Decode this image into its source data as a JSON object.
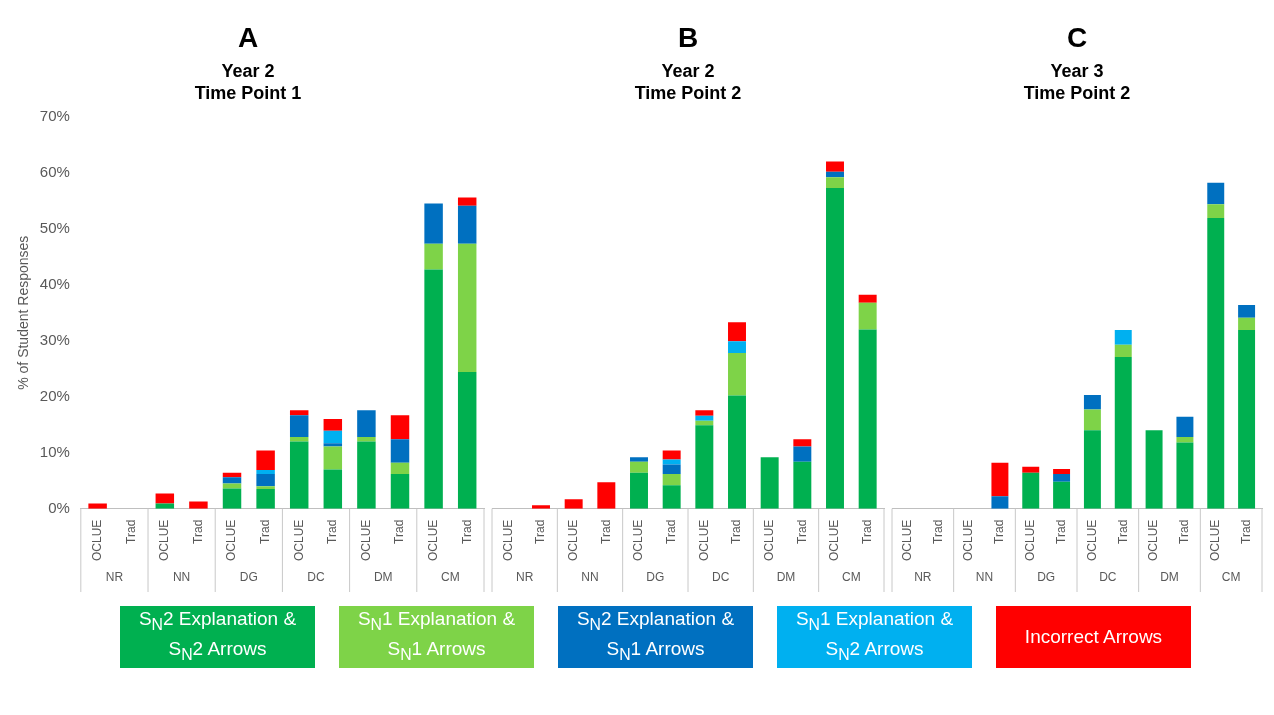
{
  "chart_data": [
    {
      "type": "bar",
      "title": "A",
      "subtitle": "Year 2\nTime Point 1",
      "ylabel": "% of Student Responses",
      "stacked": true,
      "legend": "bottom",
      "categories": [
        "OCLUE",
        "Trad",
        "OCLUE",
        "Trad",
        "OCLUE",
        "Trad",
        "OCLUE",
        "Trad",
        "OCLUE",
        "Trad",
        "OCLUE",
        "Trad"
      ],
      "annotations": [
        "NR",
        "NN",
        "DG",
        "DC",
        "DM",
        "CM"
      ],
      "ylim": [
        0,
        70
      ],
      "yticks": [
        {
          "value": 0,
          "label": "0%"
        },
        {
          "value": 10,
          "label": "10%"
        },
        {
          "value": 20,
          "label": "20%"
        },
        {
          "value": 30,
          "label": "30%"
        },
        {
          "value": 40,
          "label": "40%"
        },
        {
          "value": 50,
          "label": "50%"
        },
        {
          "value": 60,
          "label": "60%"
        },
        {
          "value": 70,
          "label": "70%"
        }
      ],
      "series": [
        {
          "name": "S$_{N}$2 Explanation & S$_{N}$2 Arrows",
          "color": "#00b050",
          "values": [
            null,
            null,
            0.9,
            null,
            3.6,
            3.5,
            12.0,
            7.0,
            12.0,
            6.2,
            42.7,
            24.4
          ]
        },
        {
          "name": "S$_{N}$1 Explanation & S$_{N}$1 Arrows",
          "color": "#7ed348",
          "values": [
            null,
            null,
            null,
            null,
            0.9,
            0.5,
            0.8,
            4.1,
            0.8,
            2.0,
            4.6,
            22.9
          ]
        },
        {
          "name": "S$_{N}$2 Explanation & S$_{N}$1 Arrows",
          "color": "#0070c0",
          "values": [
            null,
            null,
            null,
            null,
            1.1,
            2.2,
            3.9,
            0.6,
            4.8,
            4.2,
            7.2,
            6.8
          ]
        },
        {
          "name": "S$_{N}$1 Explanation & S$_{N}$2 Arrows",
          "color": "#00b0f0",
          "values": [
            null,
            null,
            null,
            null,
            null,
            0.7,
            null,
            2.2,
            null,
            null,
            null,
            null
          ]
        },
        {
          "name": "Incorrect Arrows",
          "color": "#ff0000",
          "values": [
            0.9,
            null,
            1.8,
            1.3,
            0.8,
            3.5,
            0.9,
            2.1,
            null,
            4.3,
            null,
            1.5
          ]
        }
      ]
    },
    {
      "type": "bar",
      "title": "B",
      "subtitle": "Year 2\nTime Point 2",
      "stacked": true,
      "tick_labels": "x",
      "categories": [
        "OCLUE",
        "Trad",
        "OCLUE",
        "Trad",
        "OCLUE",
        "Trad",
        "OCLUE",
        "Trad",
        "OCLUE",
        "Trad",
        "OCLUE",
        "Trad"
      ],
      "annotations": [
        "NR",
        "NN",
        "DG",
        "DC",
        "DM",
        "CM"
      ],
      "ylim": [
        0,
        70
      ],
      "series": [
        {
          "color": "#00b050",
          "values": [
            null,
            null,
            null,
            null,
            6.4,
            4.2,
            14.9,
            20.2,
            9.2,
            8.4,
            57.3,
            32.0
          ]
        },
        {
          "color": "#7ed348",
          "values": [
            null,
            null,
            null,
            null,
            2.0,
            2.0,
            0.8,
            7.6,
            null,
            null,
            1.9,
            4.8
          ]
        },
        {
          "color": "#0070c0",
          "values": [
            null,
            null,
            null,
            null,
            0.8,
            1.7,
            null,
            null,
            null,
            2.7,
            1.0,
            null
          ]
        },
        {
          "color": "#00b0f0",
          "values": [
            null,
            null,
            null,
            null,
            null,
            0.9,
            0.9,
            2.1,
            null,
            null,
            null,
            null
          ]
        },
        {
          "color": "#ff0000",
          "values": [
            null,
            0.6,
            1.7,
            4.7,
            null,
            1.6,
            1.0,
            3.4,
            null,
            1.3,
            1.8,
            1.4
          ]
        }
      ]
    },
    {
      "type": "bar",
      "title": "C",
      "subtitle": "Year 3\nTime Point 2",
      "stacked": true,
      "tick_labels": "x",
      "categories": [
        "OCLUE",
        "Trad",
        "OCLUE",
        "Trad",
        "OCLUE",
        "Trad",
        "OCLUE",
        "Trad",
        "OCLUE",
        "Trad",
        "OCLUE",
        "Trad"
      ],
      "annotations": [
        "NR",
        "NN",
        "DG",
        "DC",
        "DM",
        "CM"
      ],
      "ylim": [
        0,
        70
      ],
      "series": [
        {
          "color": "#00b050",
          "values": [
            null,
            null,
            null,
            null,
            6.4,
            4.8,
            14.0,
            27.1,
            14.0,
            11.8,
            51.9,
            31.9
          ]
        },
        {
          "color": "#7ed348",
          "values": [
            null,
            null,
            null,
            null,
            null,
            null,
            3.7,
            2.2,
            null,
            1.0,
            2.5,
            2.2
          ]
        },
        {
          "color": "#0070c0",
          "values": [
            null,
            null,
            null,
            2.2,
            null,
            1.4,
            2.6,
            null,
            null,
            3.6,
            3.8,
            2.3
          ]
        },
        {
          "color": "#00b0f0",
          "values": [
            null,
            null,
            null,
            null,
            null,
            null,
            null,
            2.6,
            null,
            null,
            null,
            null
          ]
        },
        {
          "color": "#ff0000",
          "values": [
            null,
            null,
            null,
            6.0,
            1.1,
            0.9,
            null,
            null,
            null,
            null,
            null,
            null
          ]
        }
      ]
    }
  ]
}
